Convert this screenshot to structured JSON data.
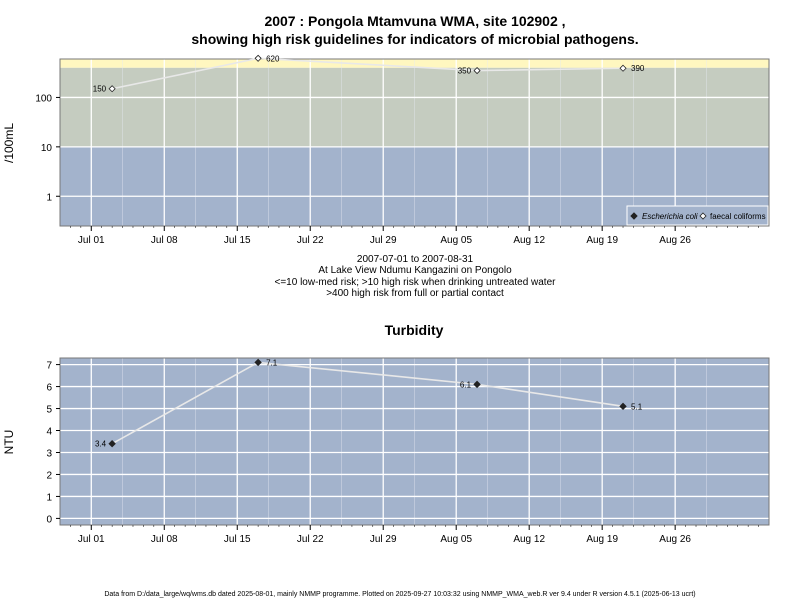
{
  "chart_data": [
    {
      "type": "line",
      "title_line1": "2007 : Pongola Mtamvuna WMA, site 102902 ,",
      "title_line2": "showing high risk guidelines for indicators of microbial pathogens.",
      "ylabel": "/100mL",
      "y_scale": "log",
      "ylim": [
        0.25,
        600
      ],
      "y_ticks": [
        1,
        10,
        100
      ],
      "y_tick_labels": [
        "1",
        "10",
        "100"
      ],
      "xlim": [
        "2007-06-28",
        "2007-09-04"
      ],
      "x_ticks": [
        "2007-07-01",
        "2007-07-08",
        "2007-07-15",
        "2007-07-22",
        "2007-07-29",
        "2007-08-05",
        "2007-08-12",
        "2007-08-19",
        "2007-08-26"
      ],
      "x_tick_labels": [
        "Jul 01",
        "Jul 08",
        "Jul 15",
        "Jul 22",
        "Jul 29",
        "Aug 05",
        "Aug 12",
        "Aug 19",
        "Aug 26"
      ],
      "risk_bands": [
        {
          "from": 0.25,
          "to": 10,
          "color": "#a3b3cc"
        },
        {
          "from": 10,
          "to": 400,
          "color": "#c5ccc0"
        },
        {
          "from": 400,
          "to": 600,
          "color": "#fff7c0"
        }
      ],
      "series": [
        {
          "name": "faecal coliforms",
          "marker": "open-diamond",
          "x": [
            "2007-07-03",
            "2007-07-17",
            "2007-08-07",
            "2007-08-21"
          ],
          "y": [
            150,
            620,
            350,
            390
          ],
          "labels": [
            "150",
            "620",
            "350",
            "390"
          ]
        }
      ],
      "legend": {
        "position": "bottom-right",
        "entries": [
          {
            "label": "Escherichia coli",
            "marker": "filled-diamond",
            "italic": true
          },
          {
            "label": "faecal coliforms",
            "marker": "open-diamond",
            "italic": false
          }
        ]
      },
      "notes": [
        "2007-07-01 to 2007-08-31",
        "At Lake View Ndumu Kangazini on Pongolo",
        "<=10 low-med risk; >10 high risk when drinking untreated water",
        ">400 high risk from full or partial contact"
      ]
    },
    {
      "type": "line",
      "title": "Turbidity",
      "ylabel": "NTU",
      "ylim": [
        -0.3,
        7.3
      ],
      "y_ticks": [
        0,
        1,
        2,
        3,
        4,
        5,
        6,
        7
      ],
      "y_tick_labels": [
        "0",
        "1",
        "2",
        "3",
        "4",
        "5",
        "6",
        "7"
      ],
      "xlim": [
        "2007-06-28",
        "2007-09-04"
      ],
      "x_ticks": [
        "2007-07-01",
        "2007-07-08",
        "2007-07-15",
        "2007-07-22",
        "2007-07-29",
        "2007-08-05",
        "2007-08-12",
        "2007-08-19",
        "2007-08-26"
      ],
      "x_tick_labels": [
        "Jul 01",
        "Jul 08",
        "Jul 15",
        "Jul 22",
        "Jul 29",
        "Aug 05",
        "Aug 12",
        "Aug 19",
        "Aug 26"
      ],
      "background": "#a3b3cc",
      "series": [
        {
          "marker": "filled-diamond",
          "x": [
            "2007-07-03",
            "2007-07-17",
            "2007-08-07",
            "2007-08-21"
          ],
          "y": [
            3.4,
            7.1,
            6.1,
            5.1
          ],
          "labels": [
            "3.4",
            "7.1",
            "6.1",
            "5.1"
          ]
        }
      ]
    }
  ],
  "footer": "Data from D:/data_large/wq/wms.db dated 2025-08-01, mainly NMMP programme. Plotted on 2025-09-27 10:03:32 using NMMP_WMA_web.R ver 9.4 under R version 4.5.1 (2025-06-13 ucrt)"
}
